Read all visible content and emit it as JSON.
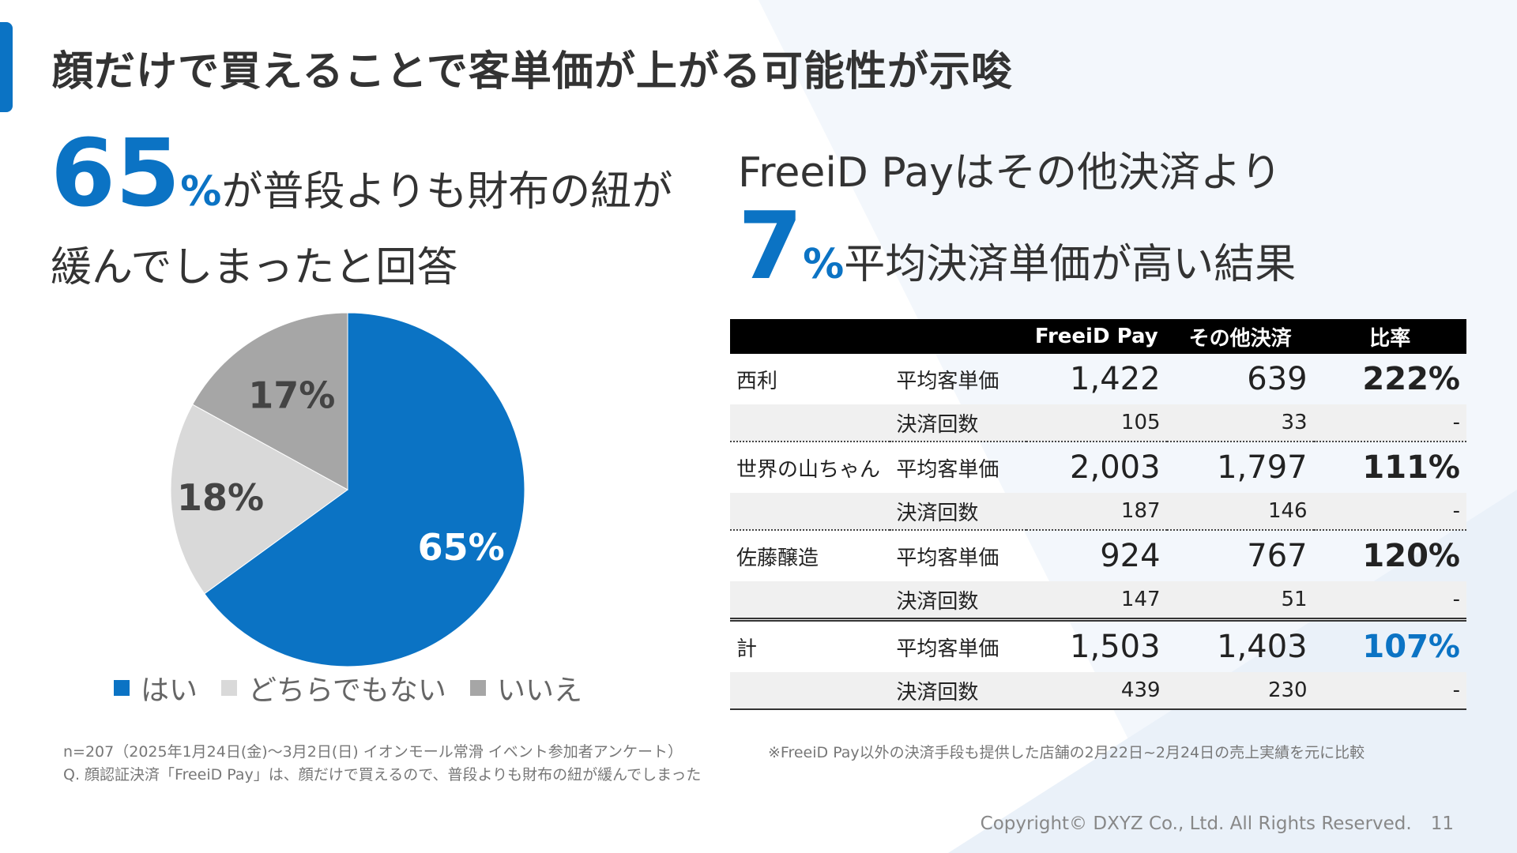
{
  "slide": {
    "title": "顔だけで買えることで客単価が上がる可能性が示唆",
    "page_number": "11",
    "copyright": "Copyright© DXYZ Co., Ltd. All Rights Reserved.",
    "accent_color": "#0b73c4"
  },
  "left": {
    "headline_number": "65",
    "headline_pct": "%",
    "headline_text_1": "が普段よりも財布の紐が",
    "headline_text_2": "緩んでしまったと回答",
    "note_line_1": "n=207（2025年1月24日(金)〜3月2日(日) イオンモール常滑 イベント参加者アンケート）",
    "note_line_2": "Q. 顔認証決済「FreeiD Pay」は、顔だけで買えるので、普段よりも財布の紐が緩んでしまった"
  },
  "chart_data": {
    "type": "pie",
    "slices": [
      {
        "label": "はい",
        "value": 65,
        "value_label": "65%",
        "color": "#0b73c4"
      },
      {
        "label": "どちらでもない",
        "value": 18,
        "value_label": "18%",
        "color": "#d9d9d9"
      },
      {
        "label": "いいえ",
        "value": 17,
        "value_label": "17%",
        "color": "#a6a6a6"
      }
    ],
    "start": "12 o'clock",
    "direction": "clockwise",
    "legend_position": "bottom"
  },
  "right": {
    "headline_line_1": "FreeiD Payはその他決済より",
    "headline_number": "7",
    "headline_pct": "%",
    "headline_text": "平均決済単価が高い結果",
    "note": "※FreeiD Pay以外の決済手段も提供した店舗の2月22日~2月24日の売上実績を元に比較"
  },
  "table": {
    "headers": [
      "",
      "",
      "FreeiD Pay",
      "その他決済",
      "比率"
    ],
    "groups": [
      {
        "store": "西利",
        "main": {
          "label": "平均客単価",
          "freeid": "1,422",
          "other": "639",
          "ratio": "222%"
        },
        "sub": {
          "label": "決済回数",
          "freeid": "105",
          "other": "33",
          "ratio": "-"
        }
      },
      {
        "store": "世界の山ちゃん",
        "main": {
          "label": "平均客単価",
          "freeid": "2,003",
          "other": "1,797",
          "ratio": "111%"
        },
        "sub": {
          "label": "決済回数",
          "freeid": "187",
          "other": "146",
          "ratio": "-"
        }
      },
      {
        "store": "佐藤醸造",
        "main": {
          "label": "平均客単価",
          "freeid": "924",
          "other": "767",
          "ratio": "120%"
        },
        "sub": {
          "label": "決済回数",
          "freeid": "147",
          "other": "51",
          "ratio": "-"
        }
      },
      {
        "store": "計",
        "main": {
          "label": "平均客単価",
          "freeid": "1,503",
          "other": "1,403",
          "ratio": "107%"
        },
        "sub": {
          "label": "決済回数",
          "freeid": "439",
          "other": "230",
          "ratio": "-"
        }
      }
    ]
  }
}
